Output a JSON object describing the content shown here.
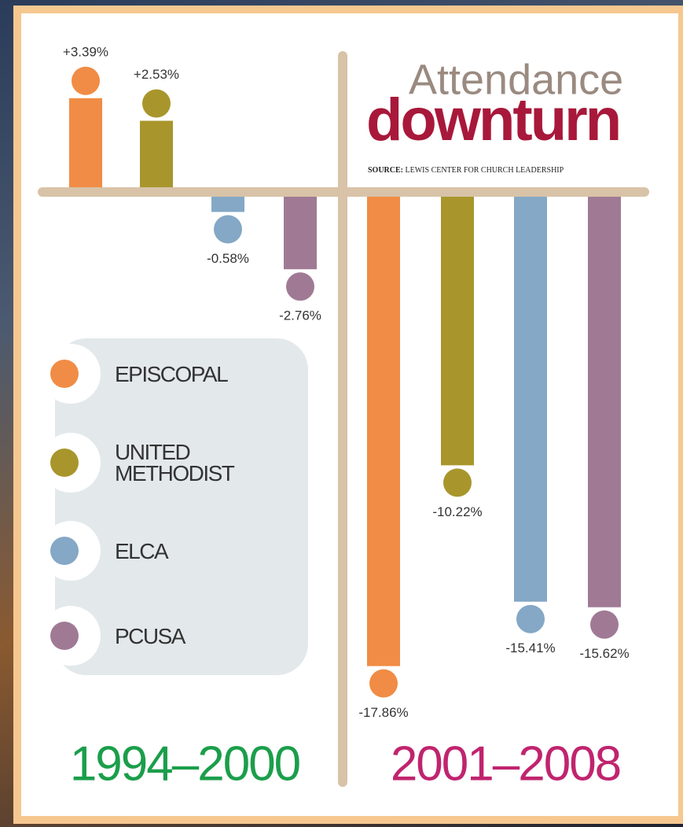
{
  "chart_data": {
    "type": "bar",
    "title": "Attendance",
    "subtitle": "downturn",
    "source_label": "SOURCE:",
    "source": "LEWIS CENTER FOR CHURCH LEADERSHIP",
    "categories": [
      "1994–2000",
      "2001–2008"
    ],
    "category_colors": [
      "#1b9e4b",
      "#c0246e"
    ],
    "series": [
      {
        "name": "EPISCOPAL",
        "color": "#f08c45",
        "values": [
          3.39,
          -17.86
        ],
        "value_labels": [
          "+3.39%",
          "-17.86%"
        ]
      },
      {
        "name": "UNITED METHODIST",
        "color": "#a8962c",
        "values": [
          2.53,
          -10.22
        ],
        "value_labels": [
          "+2.53%",
          "-10.22%"
        ]
      },
      {
        "name": "ELCA",
        "color": "#84a8c6",
        "values": [
          -0.58,
          -15.41
        ],
        "value_labels": [
          "-0.58%",
          "-15.41%"
        ]
      },
      {
        "name": "PCUSA",
        "color": "#a07a94",
        "values": [
          -2.76,
          -15.62
        ],
        "value_labels": [
          "-2.76%",
          "-15.62%"
        ]
      }
    ]
  }
}
